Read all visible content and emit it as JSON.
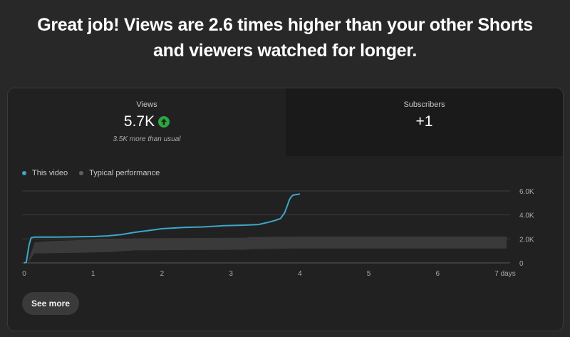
{
  "headline": {
    "line1": "Great job! Views are 2.6 times higher than your other Shorts",
    "line2": "and viewers watched for longer."
  },
  "metrics": {
    "views": {
      "label": "Views",
      "value": "5.7K",
      "delta_text": "3.5K more than usual",
      "trend_icon": "arrow-up-icon",
      "trend_color": "#2ba640"
    },
    "subscribers": {
      "label": "Subscribers",
      "value": "+1"
    }
  },
  "legend": {
    "this_video": "This video",
    "typical": "Typical performance",
    "this_video_color": "#3ea6c8",
    "typical_color": "#606060"
  },
  "see_more_label": "See more",
  "chart_data": {
    "type": "line",
    "x_tick_labels": [
      "0",
      "1",
      "2",
      "3",
      "4",
      "5",
      "6",
      "7 days"
    ],
    "y_tick_labels": [
      "6.0K",
      "4.0K",
      "2.0K",
      "0"
    ],
    "xlim": [
      0,
      7
    ],
    "ylim": [
      0,
      6000
    ],
    "series": [
      {
        "name": "This video",
        "color": "#3ea6c8",
        "x": [
          0,
          0.03,
          0.07,
          0.1,
          0.15,
          0.5,
          1.0,
          1.2,
          1.4,
          1.6,
          1.8,
          2.0,
          2.3,
          2.6,
          2.9,
          3.2,
          3.4,
          3.55,
          3.65,
          3.72,
          3.78,
          3.82,
          3.85,
          3.88,
          3.9,
          3.95,
          4.0
        ],
        "y": [
          0,
          50,
          1500,
          2100,
          2150,
          2150,
          2200,
          2250,
          2350,
          2550,
          2700,
          2850,
          2950,
          3000,
          3100,
          3150,
          3200,
          3400,
          3550,
          3700,
          4200,
          4800,
          5300,
          5550,
          5650,
          5700,
          5750
        ]
      }
    ],
    "band": {
      "name": "Typical performance",
      "color": "#3a3a3a",
      "x": [
        0,
        0.05,
        0.15,
        0.3,
        0.8,
        1.2,
        1.5,
        1.6,
        3.2,
        3.3,
        4.0,
        7.0
      ],
      "lower": [
        0,
        0,
        800,
        800,
        850,
        900,
        1000,
        1050,
        1100,
        1150,
        1200,
        1200
      ],
      "upper": [
        0,
        0,
        1700,
        1800,
        1900,
        2000,
        2000,
        2050,
        2100,
        2150,
        2200,
        2200
      ]
    }
  }
}
